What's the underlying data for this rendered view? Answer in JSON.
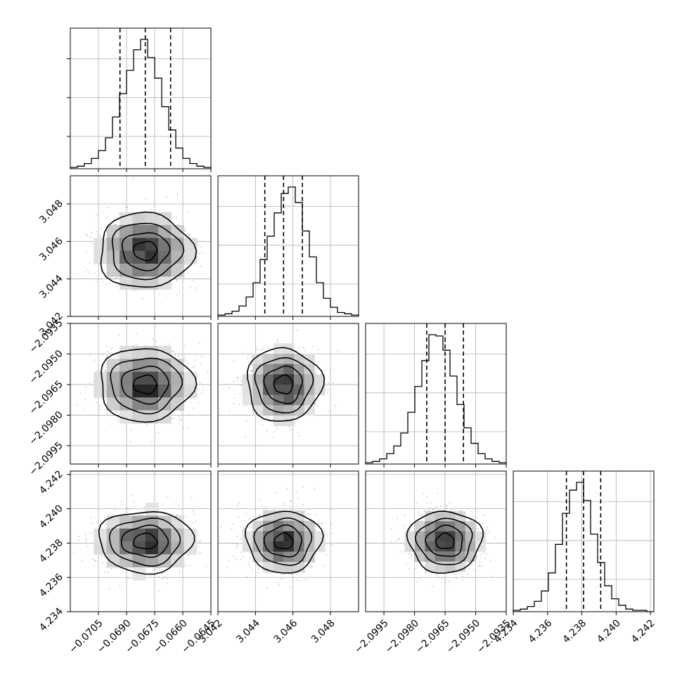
{
  "chart_data": {
    "type": "corner",
    "parameters": [
      {
        "mean": -0.068,
        "sigma": 0.00125,
        "quantiles": [
          -0.06935,
          -0.068,
          -0.06665
        ],
        "range": [
          -0.072,
          -0.0645
        ],
        "ticks": [
          -0.0705,
          -0.069,
          -0.0675,
          -0.066,
          -0.0645
        ],
        "tick_labels": [
          "−0.0705",
          "−0.0690",
          "−0.0675",
          "−0.0660",
          "−0.0645"
        ],
        "hist": [
          1,
          2,
          4,
          8,
          14,
          24,
          40,
          58,
          76,
          92,
          100,
          86,
          70,
          48,
          30,
          16,
          8,
          4,
          2,
          1
        ]
      },
      {
        "mean": 3.0455,
        "sigma": 0.001,
        "quantiles": [
          3.0445,
          3.0455,
          3.0465
        ],
        "range": [
          3.042,
          3.0495
        ],
        "ticks": [
          3.042,
          3.044,
          3.046,
          3.048
        ],
        "tick_labels": [
          "3.042",
          "3.044",
          "3.046",
          "3.048"
        ],
        "hist": [
          1,
          2,
          4,
          8,
          15,
          26,
          44,
          62,
          80,
          95,
          100,
          88,
          66,
          46,
          26,
          14,
          7,
          3,
          2,
          1
        ]
      },
      {
        "mean": -2.0965,
        "sigma": 0.0009,
        "quantiles": [
          -2.0974,
          -2.0965,
          -2.0956
        ],
        "range": [
          -2.1004,
          -2.0935
        ],
        "ticks": [
          -2.0995,
          -2.098,
          -2.0965,
          -2.095,
          -2.0935
        ],
        "tick_labels": [
          "−2.0995",
          "−2.0980",
          "−2.0965",
          "−2.0950",
          "−2.0935"
        ],
        "hist": [
          1,
          2,
          4,
          8,
          14,
          24,
          40,
          60,
          80,
          100,
          99,
          88,
          68,
          46,
          28,
          16,
          8,
          4,
          2,
          1
        ]
      },
      {
        "mean": 4.2381,
        "sigma": 0.0009,
        "quantiles": [
          4.2371,
          4.2381,
          4.2391
        ],
        "range": [
          4.234,
          4.2422
        ],
        "ticks": [
          4.234,
          4.236,
          4.238,
          4.24,
          4.242
        ],
        "tick_labels": [
          "4.234",
          "4.236",
          "4.238",
          "4.240",
          "4.242"
        ],
        "hist": [
          1,
          2,
          4,
          8,
          16,
          30,
          52,
          76,
          94,
          100,
          86,
          60,
          38,
          20,
          10,
          5,
          2,
          1,
          1,
          0
        ]
      }
    ],
    "grid": true,
    "colors": {
      "line": "#000000",
      "points": "#999999",
      "grid": "#b0b0b0"
    }
  }
}
